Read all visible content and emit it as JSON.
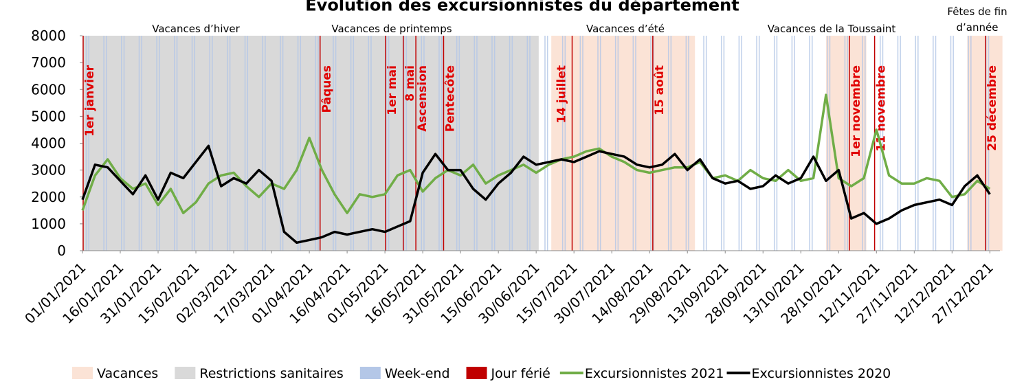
{
  "chart_data": {
    "type": "line",
    "title": "Évolution des excursionnistes du département",
    "x": [
      "01/01/2021",
      "06/01/2021",
      "11/01/2021",
      "16/01/2021",
      "21/01/2021",
      "26/01/2021",
      "31/01/2021",
      "05/02/2021",
      "10/02/2021",
      "15/02/2021",
      "20/02/2021",
      "25/02/2021",
      "02/03/2021",
      "07/03/2021",
      "12/03/2021",
      "17/03/2021",
      "22/03/2021",
      "27/03/2021",
      "01/04/2021",
      "06/04/2021",
      "11/04/2021",
      "16/04/2021",
      "21/04/2021",
      "26/04/2021",
      "01/05/2021",
      "06/05/2021",
      "11/05/2021",
      "16/05/2021",
      "21/05/2021",
      "26/05/2021",
      "31/05/2021",
      "05/06/2021",
      "10/06/2021",
      "15/06/2021",
      "20/06/2021",
      "25/06/2021",
      "30/06/2021",
      "05/07/2021",
      "10/07/2021",
      "15/07/2021",
      "20/07/2021",
      "25/07/2021",
      "30/07/2021",
      "04/08/2021",
      "09/08/2021",
      "14/08/2021",
      "19/08/2021",
      "24/08/2021",
      "29/08/2021",
      "03/09/2021",
      "08/09/2021",
      "13/09/2021",
      "18/09/2021",
      "23/09/2021",
      "28/09/2021",
      "03/10/2021",
      "08/10/2021",
      "13/10/2021",
      "18/10/2021",
      "23/10/2021",
      "28/10/2021",
      "02/11/2021",
      "07/11/2021",
      "12/11/2021",
      "17/11/2021",
      "22/11/2021",
      "27/11/2021",
      "02/12/2021",
      "07/12/2021",
      "12/12/2021",
      "17/12/2021",
      "22/12/2021",
      "27/12/2021"
    ],
    "series": [
      {
        "name": "Excursionnistes 2021",
        "color": "#70ad47",
        "values": [
          1500,
          2800,
          3400,
          2700,
          2300,
          2500,
          1700,
          2300,
          1400,
          1800,
          2500,
          2800,
          2900,
          2400,
          2000,
          2500,
          2300,
          3000,
          4200,
          3000,
          2100,
          1400,
          2100,
          2000,
          2100,
          2800,
          3000,
          2200,
          2700,
          3000,
          2800,
          3200,
          2500,
          2800,
          3000,
          3200,
          2900,
          3200,
          3400,
          3500,
          3700,
          3800,
          3500,
          3300,
          3000,
          2900,
          3000,
          3100,
          3100,
          3300,
          2700,
          2800,
          2600,
          3000,
          2700,
          2600,
          3000,
          2600,
          2700,
          5800,
          2700,
          2400,
          2700,
          4500,
          2800,
          2500,
          2500,
          2700,
          2600,
          2000,
          2100,
          2600,
          2300
        ]
      },
      {
        "name": "Excursionnistes 2020",
        "color": "#000000",
        "values": [
          1900,
          3200,
          3100,
          2600,
          2100,
          2800,
          1900,
          2900,
          2700,
          3300,
          3900,
          2400,
          2700,
          2500,
          3000,
          2600,
          700,
          300,
          400,
          500,
          700,
          600,
          700,
          800,
          700,
          900,
          1100,
          2900,
          3600,
          3000,
          3000,
          2300,
          1900,
          2500,
          2900,
          3500,
          3200,
          3300,
          3400,
          3300,
          3500,
          3700,
          3600,
          3500,
          3200,
          3100,
          3200,
          3600,
          3000,
          3400,
          2700,
          2500,
          2600,
          2300,
          2400,
          2800,
          2500,
          2700,
          3500,
          2600,
          3000,
          1200,
          1400,
          1000,
          1200,
          1500,
          1700,
          1800,
          1900,
          1700,
          2400,
          2800,
          2100
        ]
      }
    ],
    "xlim": [
      "01/01/2021",
      "31/12/2021"
    ],
    "xticks": [
      "01/01/2021",
      "16/01/2021",
      "31/01/2021",
      "15/02/2021",
      "02/03/2021",
      "17/03/2021",
      "01/04/2021",
      "16/04/2021",
      "01/05/2021",
      "16/05/2021",
      "31/05/2021",
      "15/06/2021",
      "30/06/2021",
      "15/07/2021",
      "30/07/2021",
      "14/08/2021",
      "29/08/2021",
      "13/09/2021",
      "28/09/2021",
      "13/10/2021",
      "28/10/2021",
      "12/11/2021",
      "27/11/2021",
      "12/12/2021",
      "27/12/2021"
    ],
    "ylim": [
      0,
      8000
    ],
    "yticks": [
      0,
      1000,
      2000,
      3000,
      4000,
      5000,
      6000,
      7000,
      8000
    ],
    "restrictions": {
      "name": "Restrictions sanitaires",
      "color": "#d9d9d9",
      "start": "01/01/2021",
      "end": "30/06/2021"
    },
    "vacances": {
      "name": "Vacances",
      "color": "#fbe3d6",
      "periods": [
        [
          "06/07/2021",
          "31/08/2021"
        ],
        [
          "23/10/2021",
          "07/11/2021"
        ],
        [
          "18/12/2021",
          "31/12/2021"
        ]
      ]
    },
    "weekend": {
      "name": "Week-end",
      "color": "#b4c7e7"
    },
    "jours_feries": {
      "name": "Jour férié",
      "color": "#c00000",
      "days": [
        {
          "date": "01/01/2021",
          "label": "1er janvier"
        },
        {
          "date": "05/04/2021",
          "label": "Pâques"
        },
        {
          "date": "01/05/2021",
          "label": "1er mai"
        },
        {
          "date": "08/05/2021",
          "label": "8 mai"
        },
        {
          "date": "13/05/2021",
          "label": "Ascension"
        },
        {
          "date": "24/05/2021",
          "label": "Pentecôte"
        },
        {
          "date": "14/07/2021",
          "label": "14 juillet"
        },
        {
          "date": "15/08/2021",
          "label": "15 août"
        },
        {
          "date": "01/11/2021",
          "label": "1er novembre"
        },
        {
          "date": "11/11/2021",
          "label": "11 novembre"
        },
        {
          "date": "25/12/2021",
          "label": "25 décembre"
        }
      ]
    },
    "period_labels": [
      "Vacances d’hiver",
      "Vacances de printemps",
      "Vacances d’été",
      "Vacances de la Toussaint",
      [
        "Fêtes de fin",
        "d’année"
      ]
    ]
  }
}
